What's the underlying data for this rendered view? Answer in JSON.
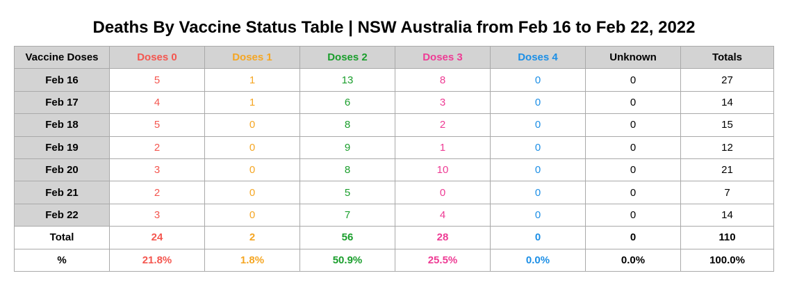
{
  "title": "Deaths By Vaccine Status Table | NSW Australia from Feb 16 to Feb 22, 2022",
  "colors": {
    "doses0": "#f4564f",
    "doses1": "#f5a623",
    "doses2": "#1a9e2c",
    "doses3": "#ee3b94",
    "doses4": "#1c8fe6",
    "unknown": "#000000",
    "totals": "#000000",
    "header_bg": "#d3d3d3",
    "border": "#a9a9a9"
  },
  "chart_data": {
    "type": "table",
    "title": "Deaths By Vaccine Status Table | NSW Australia from Feb 16 to Feb 22, 2022",
    "columns": [
      "Vaccine Doses",
      "Doses 0",
      "Doses 1",
      "Doses 2",
      "Doses 3",
      "Doses 4",
      "Unknown",
      "Totals"
    ],
    "column_colors": [
      "#000000",
      "#f4564f",
      "#f5a623",
      "#1a9e2c",
      "#ee3b94",
      "#1c8fe6",
      "#000000",
      "#000000"
    ],
    "rows": [
      [
        "Feb 16",
        "5",
        "1",
        "13",
        "8",
        "0",
        "0",
        "27"
      ],
      [
        "Feb 17",
        "4",
        "1",
        "6",
        "3",
        "0",
        "0",
        "14"
      ],
      [
        "Feb 18",
        "5",
        "0",
        "8",
        "2",
        "0",
        "0",
        "15"
      ],
      [
        "Feb 19",
        "2",
        "0",
        "9",
        "1",
        "0",
        "0",
        "12"
      ],
      [
        "Feb 20",
        "3",
        "0",
        "8",
        "10",
        "0",
        "0",
        "21"
      ],
      [
        "Feb 21",
        "2",
        "0",
        "5",
        "0",
        "0",
        "0",
        "7"
      ],
      [
        "Feb 22",
        "3",
        "0",
        "7",
        "4",
        "0",
        "0",
        "14"
      ]
    ],
    "footer_rows": [
      [
        "Total",
        "24",
        "2",
        "56",
        "28",
        "0",
        "0",
        "110"
      ],
      [
        "%",
        "21.8%",
        "1.8%",
        "50.9%",
        "25.5%",
        "0.0%",
        "0.0%",
        "100.0%"
      ]
    ]
  }
}
